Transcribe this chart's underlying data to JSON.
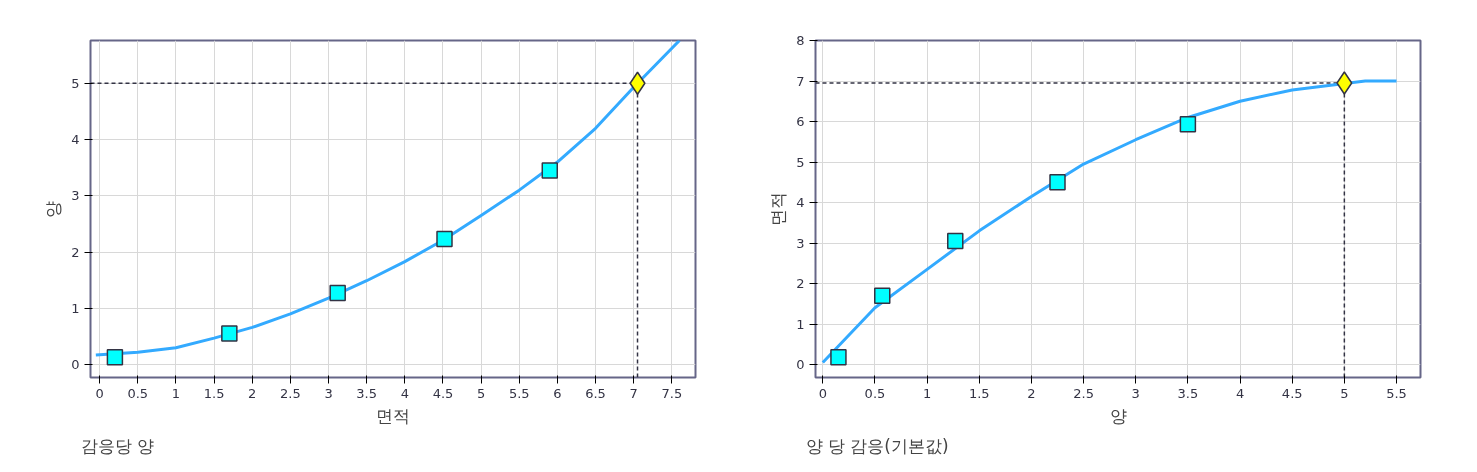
{
  "chart_data": [
    {
      "type": "line",
      "xlabel": "면적",
      "ylabel": "양",
      "annotations": [
        "감응당 양"
      ],
      "xlim": [
        -0.12,
        7.81
      ],
      "ylim": [
        -0.23,
        5.76
      ],
      "xticks": [
        0,
        0.5,
        1,
        1.5,
        2,
        2.5,
        3,
        3.5,
        4,
        4.5,
        5,
        5.5,
        6,
        6.5,
        7,
        7.5
      ],
      "yticks": [
        0,
        1,
        2,
        3,
        4,
        5
      ],
      "grid": true,
      "series": [
        {
          "color": "#33aaff",
          "x": [
            -0.05,
            0.5,
            1,
            1.5,
            2,
            2.5,
            3,
            3.5,
            4,
            4.5,
            5,
            5.5,
            6,
            6.5,
            7,
            7.6
          ],
          "values": [
            0.17,
            0.22,
            0.3,
            0.47,
            0.66,
            0.9,
            1.18,
            1.49,
            1.83,
            2.21,
            2.65,
            3.1,
            3.6,
            4.2,
            4.93,
            5.76
          ]
        },
        {
          "type": "scatter",
          "marker": "square",
          "color": "#00ffff",
          "x": [
            0.2,
            1.7,
            3.12,
            4.52,
            5.9
          ],
          "values": [
            0.13,
            0.55,
            1.27,
            2.23,
            3.45
          ]
        },
        {
          "type": "scatter",
          "marker": "diamond",
          "color": "#ffff00",
          "x": [
            7.05
          ],
          "values": [
            5.0
          ]
        }
      ],
      "ref_lines": [
        {
          "axis": "y",
          "value": 5.0,
          "line_style": "dashed",
          "color": "#333344"
        },
        {
          "axis": "x",
          "value": 7.05,
          "line_style": "dashed",
          "color": "#333344"
        }
      ]
    },
    {
      "type": "line",
      "xlabel": "양",
      "ylabel": "면적",
      "annotations": [
        "양 당 감응(기본값)"
      ],
      "xlim": [
        -0.07,
        5.73
      ],
      "ylim": [
        -0.32,
        8
      ],
      "xticks": [
        0,
        0.5,
        1,
        1.5,
        2,
        2.5,
        3,
        3.5,
        4,
        4.5,
        5,
        5.5
      ],
      "yticks": [
        0,
        1,
        2,
        3,
        4,
        5,
        6,
        7,
        8
      ],
      "grid": true,
      "series": [
        {
          "color": "#33aaff",
          "x": [
            0,
            0.5,
            1,
            1.5,
            2,
            2.5,
            3,
            3.5,
            4,
            4.5,
            5.2,
            5.5
          ],
          "values": [
            0.05,
            1.4,
            2.35,
            3.3,
            4.15,
            4.95,
            5.55,
            6.1,
            6.5,
            6.78,
            7.0,
            7.0
          ]
        },
        {
          "type": "scatter",
          "marker": "square",
          "color": "#00ffff",
          "x": [
            0.15,
            0.57,
            1.27,
            2.25,
            3.5
          ],
          "values": [
            0.18,
            1.7,
            3.05,
            4.5,
            5.93
          ]
        },
        {
          "type": "scatter",
          "marker": "diamond",
          "color": "#ffff00",
          "x": [
            5.0
          ],
          "values": [
            6.95
          ]
        }
      ],
      "ref_lines": [
        {
          "axis": "y",
          "value": 6.95,
          "line_style": "dashed",
          "color": "#333344"
        },
        {
          "axis": "x",
          "value": 5.0,
          "line_style": "dashed",
          "color": "#333344"
        }
      ]
    }
  ]
}
